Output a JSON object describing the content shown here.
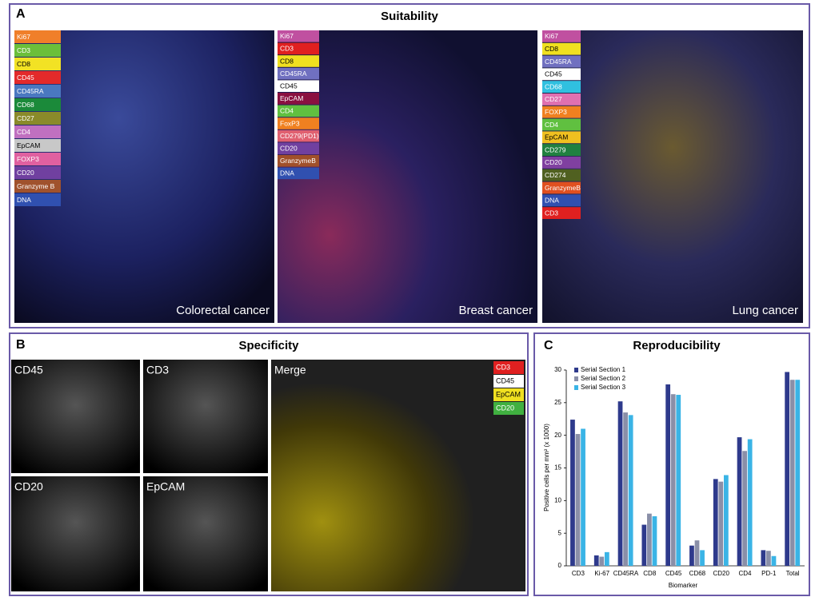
{
  "panel_a": {
    "label": "A",
    "title": "Suitability",
    "images": [
      {
        "caption": "Colorectal cancer",
        "legend": [
          {
            "text": "Ki67",
            "color": "#f07f2a"
          },
          {
            "text": "CD3",
            "color": "#6bbf3a"
          },
          {
            "text": "CD8",
            "color": "#f2e224"
          },
          {
            "text": "CD45",
            "color": "#e32a2a"
          },
          {
            "text": "CD45RA",
            "color": "#4a78c0"
          },
          {
            "text": "CD68",
            "color": "#1b8a3a"
          },
          {
            "text": "CD27",
            "color": "#8a8a2a"
          },
          {
            "text": "CD4",
            "color": "#c070c0"
          },
          {
            "text": "EpCAM",
            "color": "#c8c8c8"
          },
          {
            "text": "FOXP3",
            "color": "#e060a0"
          },
          {
            "text": "CD20",
            "color": "#7040a0"
          },
          {
            "text": "Granzyme B",
            "color": "#a0522d"
          },
          {
            "text": "DNA",
            "color": "#3050b0"
          }
        ]
      },
      {
        "caption": "Breast cancer",
        "legend": [
          {
            "text": "Ki67",
            "color": "#c050a0"
          },
          {
            "text": "CD3",
            "color": "#e02020"
          },
          {
            "text": "CD8",
            "color": "#f0e020"
          },
          {
            "text": "CD45RA",
            "color": "#7070c0"
          },
          {
            "text": "CD45",
            "color": "#ffffff"
          },
          {
            "text": "EpCAM",
            "color": "#8a1040"
          },
          {
            "text": "CD4",
            "color": "#60c040"
          },
          {
            "text": "FoxP3",
            "color": "#f08020"
          },
          {
            "text": "CD279(PD1)",
            "color": "#e06070"
          },
          {
            "text": "CD20",
            "color": "#7040a0"
          },
          {
            "text": "GranzymeB",
            "color": "#a0502a"
          },
          {
            "text": "DNA",
            "color": "#3050b0"
          }
        ]
      },
      {
        "caption": "Lung cancer",
        "legend": [
          {
            "text": "Ki67",
            "color": "#c050a0"
          },
          {
            "text": "CD8",
            "color": "#f0e020"
          },
          {
            "text": "CD45RA",
            "color": "#7070c0"
          },
          {
            "text": "CD45",
            "color": "#ffffff"
          },
          {
            "text": "CD68",
            "color": "#30c0e0"
          },
          {
            "text": "CD27",
            "color": "#e070b0"
          },
          {
            "text": "FOXP3",
            "color": "#f08020"
          },
          {
            "text": "CD4",
            "color": "#60c040"
          },
          {
            "text": "EpCAM",
            "color": "#f0c020"
          },
          {
            "text": "CD279",
            "color": "#208040"
          },
          {
            "text": "CD20",
            "color": "#8040a0"
          },
          {
            "text": "CD274",
            "color": "#506020"
          },
          {
            "text": "GranzymeB",
            "color": "#e05020"
          },
          {
            "text": "DNA",
            "color": "#3050b0"
          },
          {
            "text": "CD3",
            "color": "#e02020"
          }
        ]
      }
    ]
  },
  "panel_b": {
    "label": "B",
    "title": "Specificity",
    "images": [
      "CD45",
      "CD3",
      "CD20",
      "EpCAM",
      "Merge"
    ],
    "legend": [
      {
        "text": "CD3",
        "color": "#e02020"
      },
      {
        "text": "CD45",
        "color": "#ffffff"
      },
      {
        "text": "EpCAM",
        "color": "#f0e020"
      },
      {
        "text": "CD20",
        "color": "#40b040"
      }
    ]
  },
  "panel_c": {
    "label": "C"
  },
  "chart_data": {
    "type": "bar",
    "title": "Reproducibility",
    "y_label": "Positive cells per mm² (x 1000)",
    "x_label": "Biomarker",
    "categories": [
      "CD3",
      "Ki-67",
      "CD45RA",
      "CD8",
      "CD45",
      "CD68",
      "CD20",
      "CD4",
      "PD-1",
      "Total"
    ],
    "series": [
      {
        "name": "Serial Section 1",
        "color": "#2e3a8c",
        "values": [
          22.4,
          1.6,
          25.2,
          6.3,
          27.8,
          3.1,
          13.3,
          19.7,
          2.4,
          29.7
        ]
      },
      {
        "name": "Serial Section 2",
        "color": "#8a8fa8",
        "values": [
          20.2,
          1.4,
          23.5,
          8.0,
          26.3,
          3.9,
          12.9,
          17.6,
          2.3,
          28.5
        ]
      },
      {
        "name": "Serial Section 3",
        "color": "#3ab4e6",
        "values": [
          21.0,
          2.1,
          23.1,
          7.6,
          26.2,
          2.4,
          13.9,
          19.4,
          1.5,
          28.5
        ]
      }
    ],
    "ylim": [
      0,
      30
    ],
    "yticks": [
      0,
      5,
      10,
      15,
      20,
      25,
      30
    ],
    "legend": "upper left"
  }
}
